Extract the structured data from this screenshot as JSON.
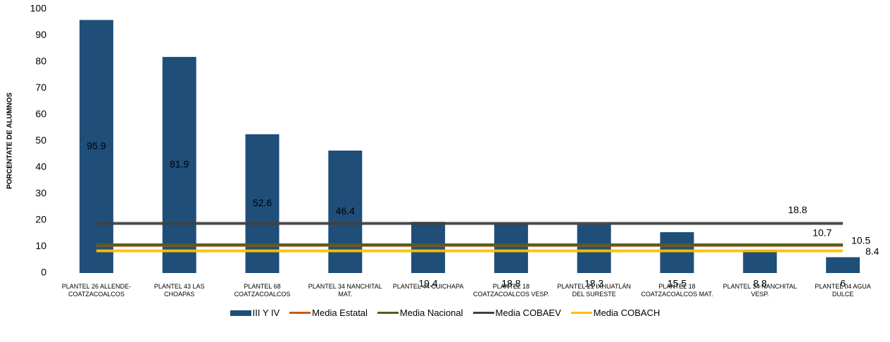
{
  "chart_data": {
    "type": "bar",
    "y_label": "PORCENTATE DE ALUMNOS",
    "categories": [
      "PLANTEL 26 ALLENDE-COATZACOALCOS",
      "PLANTEL 43 LAS CHOAPAS",
      "PLANTEL 68 COATZACOALCOS",
      "PLANTEL 34 NANCHITAL MAT.",
      "PLANTEL 44 CUICHAPA",
      "PLANTEL 18 COATZACOALCOS VESP.",
      "PLANTEL 21 IXHUATLÁN DEL SURESTE",
      "PLANTEL 18 COATZACOALCOS MAT.",
      "PLANTEL 34 NANCHITAL VESP.",
      "PLANTEL 04 AGUA DULCE"
    ],
    "series": [
      {
        "name": "III Y IV",
        "type": "bar",
        "color": "#1f4e79",
        "values": [
          95.9,
          81.9,
          52.6,
          46.4,
          19.4,
          18.8,
          18.3,
          15.5,
          8.8,
          6
        ]
      },
      {
        "name": "Media Estatal",
        "type": "line",
        "color": "#c55a11",
        "values": [
          10.5,
          10.5,
          10.5,
          10.5,
          10.5,
          10.5,
          10.5,
          10.5,
          10.5,
          10.5
        ]
      },
      {
        "name": "Media Nacional",
        "type": "line",
        "color": "#4e5f22",
        "values": [
          10.7,
          10.7,
          10.7,
          10.7,
          10.7,
          10.7,
          10.7,
          10.7,
          10.7,
          10.7
        ]
      },
      {
        "name": "Media COBAEV",
        "type": "line",
        "color": "#404040",
        "values": [
          18.8,
          18.8,
          18.8,
          18.8,
          18.8,
          18.8,
          18.8,
          18.8,
          18.8,
          18.8
        ]
      },
      {
        "name": "Media COBACH",
        "type": "line",
        "color": "#ffc000",
        "values": [
          8.4,
          8.4,
          8.4,
          8.4,
          8.4,
          8.4,
          8.4,
          8.4,
          8.4,
          8.4
        ]
      }
    ],
    "ylim": [
      0,
      100
    ],
    "yticks": [
      0,
      10,
      20,
      30,
      40,
      50,
      60,
      70,
      80,
      90,
      100
    ],
    "grid": false,
    "legend": "bottom"
  }
}
